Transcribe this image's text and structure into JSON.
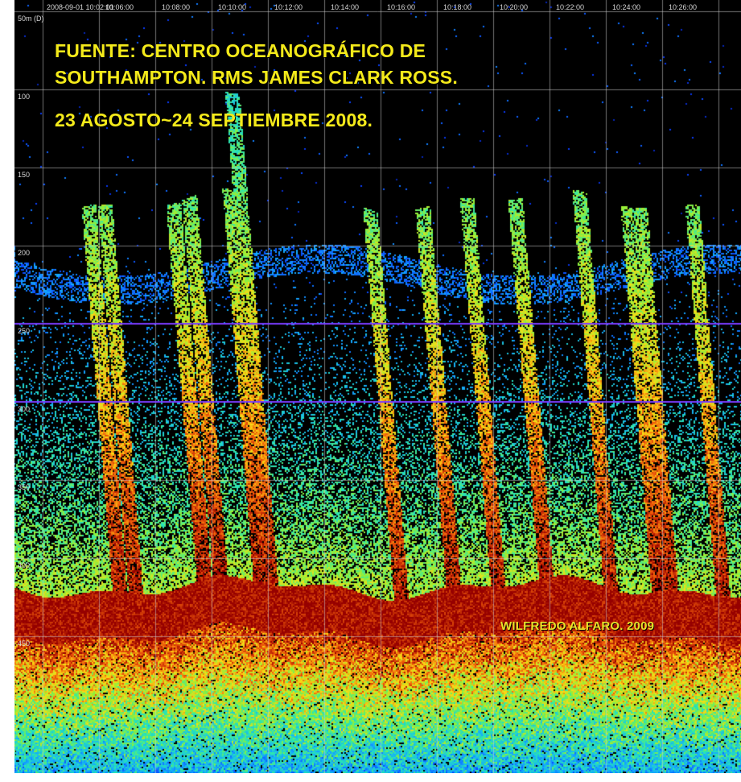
{
  "chart_data": {
    "type": "heatmap",
    "description_free": true,
    "x_tick_labels": [
      "2008-09-01 10:02:01",
      "10:06:00",
      "10:08:00",
      "10:10:00",
      "10:12:00",
      "10:14:00",
      "10:16:00",
      "10:18:00",
      "10:20:00",
      "10:22:00",
      "10:24:00",
      "10:26:00"
    ],
    "y_tick_labels": [
      "50m (D)",
      "100",
      "150",
      "200",
      "250",
      "300",
      "350",
      "400",
      "450"
    ],
    "y_values": [
      50,
      100,
      150,
      200,
      250,
      300,
      350,
      400,
      450
    ],
    "ylim": [
      40,
      480
    ],
    "y_inverted": true,
    "seafloor_depth": 371,
    "grid": true,
    "highlight_lines": [
      250,
      300
    ],
    "colors": {
      "background": "#000000",
      "grid": "#cfcfcf",
      "highlight_line": "#7a3cff",
      "seafloor": "#8a0000",
      "low": "#0a3cff",
      "mid": "#2ee6a0",
      "high": "#ffcc00"
    }
  },
  "annotations": {
    "line1": "FUENTE: CENTRO OCEANOGRÁFICO DE",
    "line2": "SOUTHAMPTON. RMS JAMES CLARK ROSS.",
    "line3": "23 AGOSTO~24 SEPTIEMBRE 2008.",
    "credit": "WILFREDO ALFARO. 2009"
  }
}
